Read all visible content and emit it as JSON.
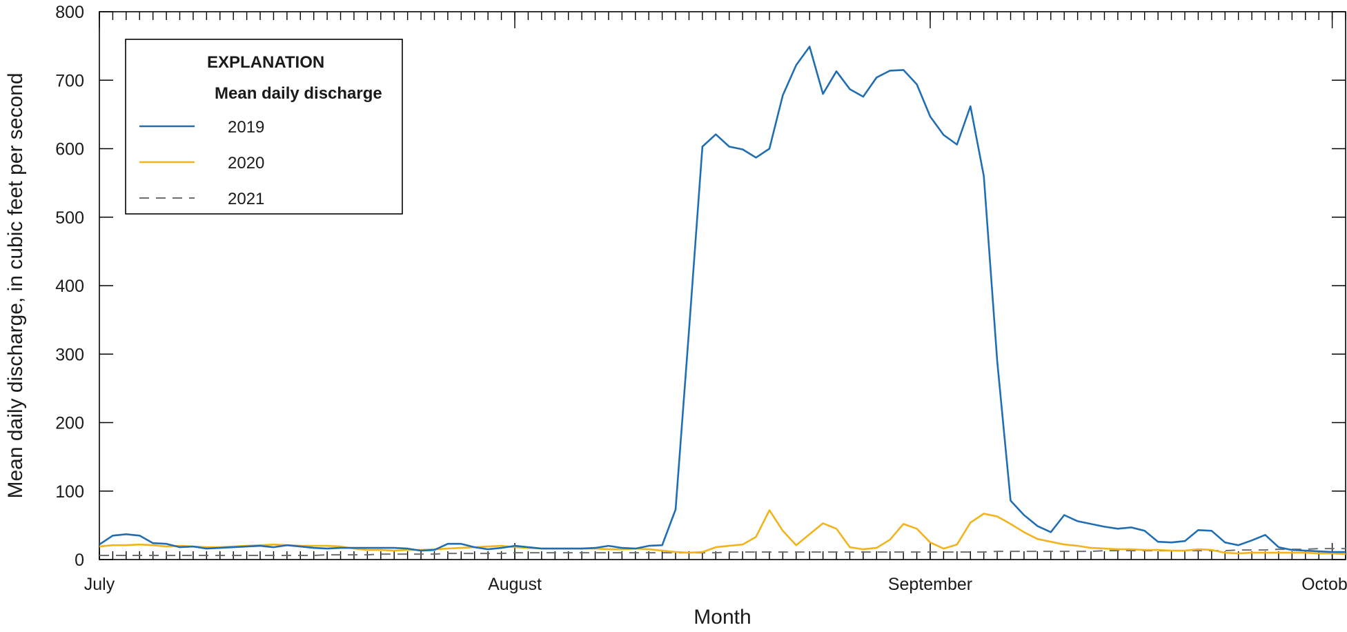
{
  "chart_data": {
    "type": "line",
    "xlabel": "Month",
    "ylabel": "Mean daily discharge, in cubic feet per second",
    "ylim": [
      0,
      800
    ],
    "yticks": [
      0,
      100,
      200,
      300,
      400,
      500,
      600,
      700,
      800
    ],
    "xlim": [
      1,
      94
    ],
    "x_ticks": [
      {
        "day": 1,
        "label": "July"
      },
      {
        "day": 32,
        "label": "August"
      },
      {
        "day": 63,
        "label": "September"
      },
      {
        "day": 93,
        "label": "October"
      }
    ],
    "legend": {
      "heading": "EXPLANATION",
      "subheading": "Mean daily discharge",
      "position": "top-left"
    },
    "series": [
      {
        "name": "2019",
        "color": "#1f6db3",
        "style": "solid",
        "x": [
          1,
          2,
          3,
          4,
          5,
          6,
          7,
          8,
          9,
          10,
          11,
          12,
          13,
          14,
          15,
          16,
          17,
          18,
          19,
          20,
          21,
          22,
          23,
          24,
          25,
          26,
          27,
          28,
          29,
          30,
          31,
          32,
          33,
          34,
          35,
          36,
          37,
          38,
          39,
          40,
          41,
          42,
          43,
          44,
          45,
          46,
          47,
          48,
          49,
          50,
          51,
          52,
          53,
          54,
          55,
          56,
          57,
          58,
          59,
          60,
          61,
          62,
          63,
          64,
          65,
          66,
          67,
          68,
          69,
          70,
          71,
          72,
          73,
          74,
          75,
          76,
          77,
          78,
          79,
          80,
          81,
          82,
          83,
          84,
          85,
          86,
          87,
          88,
          89,
          90,
          91,
          92,
          93,
          94
        ],
        "values": [
          22,
          35,
          37,
          35,
          24,
          23,
          18,
          19,
          16,
          17,
          18,
          19,
          20,
          18,
          21,
          19,
          17,
          16,
          17,
          17,
          17,
          17,
          17,
          16,
          13,
          14,
          23,
          23,
          18,
          15,
          17,
          20,
          18,
          16,
          16,
          16,
          16,
          17,
          20,
          17,
          16,
          20,
          21,
          73,
          335,
          603,
          621,
          603,
          599,
          587,
          600,
          678,
          722,
          749,
          680,
          713,
          687,
          676,
          704,
          714,
          715,
          694,
          647,
          620,
          606,
          662,
          560,
          290,
          86,
          65,
          49,
          40,
          65,
          56,
          52,
          48,
          45,
          47,
          42,
          26,
          25,
          27,
          43,
          42,
          25,
          21,
          28,
          36,
          18,
          14,
          13,
          12,
          11,
          11
        ]
      },
      {
        "name": "2020",
        "color": "#f2b31b",
        "style": "solid",
        "x": [
          1,
          2,
          3,
          4,
          5,
          6,
          7,
          8,
          9,
          10,
          11,
          12,
          13,
          14,
          15,
          16,
          17,
          18,
          19,
          20,
          21,
          22,
          23,
          24,
          25,
          26,
          27,
          28,
          29,
          30,
          31,
          32,
          33,
          34,
          35,
          36,
          37,
          38,
          39,
          40,
          41,
          42,
          43,
          44,
          45,
          46,
          47,
          48,
          49,
          50,
          51,
          52,
          53,
          54,
          55,
          56,
          57,
          58,
          59,
          60,
          61,
          62,
          63,
          64,
          65,
          66,
          67,
          68,
          69,
          70,
          71,
          72,
          73,
          74,
          75,
          76,
          77,
          78,
          79,
          80,
          81,
          82,
          83,
          84,
          85,
          86,
          87,
          88,
          89,
          90,
          91,
          92,
          93,
          94
        ],
        "values": [
          19,
          21,
          21,
          22,
          21,
          19,
          20,
          19,
          18,
          18,
          19,
          20,
          21,
          22,
          21,
          20,
          20,
          20,
          19,
          16,
          14,
          14,
          13,
          14,
          14,
          15,
          16,
          17,
          18,
          19,
          20,
          18,
          17,
          16,
          16,
          16,
          16,
          16,
          15,
          15,
          16,
          15,
          13,
          11,
          10,
          11,
          18,
          20,
          22,
          33,
          72,
          42,
          21,
          37,
          53,
          45,
          18,
          15,
          17,
          29,
          52,
          45,
          25,
          16,
          22,
          54,
          67,
          63,
          52,
          40,
          30,
          26,
          22,
          20,
          17,
          16,
          15,
          15,
          14,
          14,
          13,
          13,
          15,
          14,
          10,
          9,
          10,
          10,
          10,
          10,
          10,
          9,
          9,
          8
        ]
      },
      {
        "name": "2021",
        "color": "#6e6e6e",
        "style": "dashed",
        "x": [
          1,
          2,
          3,
          4,
          5,
          6,
          7,
          8,
          9,
          10,
          11,
          12,
          13,
          14,
          15,
          16,
          17,
          18,
          19,
          20,
          21,
          22,
          23,
          24,
          25,
          26,
          27,
          28,
          29,
          30,
          31,
          32,
          33,
          34,
          35,
          36,
          37,
          38,
          39,
          40,
          41,
          42,
          43,
          44,
          45,
          46,
          47,
          48,
          49,
          50,
          51,
          52,
          53,
          54,
          55,
          56,
          57,
          58,
          59,
          60,
          61,
          62,
          63,
          64,
          65,
          66,
          67,
          68,
          69,
          70,
          71,
          72,
          73,
          74,
          75,
          76,
          77,
          78,
          79,
          80,
          81,
          82,
          83,
          84,
          85,
          86,
          87,
          88,
          89,
          90,
          91,
          92,
          93,
          94
        ],
        "values": [
          6,
          6,
          6,
          6,
          6,
          6,
          6,
          6,
          6,
          6,
          6,
          6,
          6,
          6,
          6,
          6,
          6,
          7,
          7,
          7,
          7,
          8,
          8,
          8,
          8,
          8,
          9,
          9,
          9,
          9,
          9,
          10,
          10,
          10,
          10,
          10,
          10,
          10,
          10,
          10,
          10,
          10,
          10,
          10,
          10,
          10,
          10,
          11,
          11,
          11,
          11,
          11,
          11,
          11,
          11,
          11,
          11,
          11,
          11,
          11,
          11,
          11,
          11,
          11,
          11,
          11,
          11,
          12,
          12,
          12,
          12,
          12,
          12,
          12,
          12,
          13,
          13,
          13,
          13,
          13,
          13,
          13,
          13,
          13,
          13,
          14,
          14,
          14,
          15,
          15,
          15,
          16,
          16,
          16
        ]
      }
    ]
  }
}
